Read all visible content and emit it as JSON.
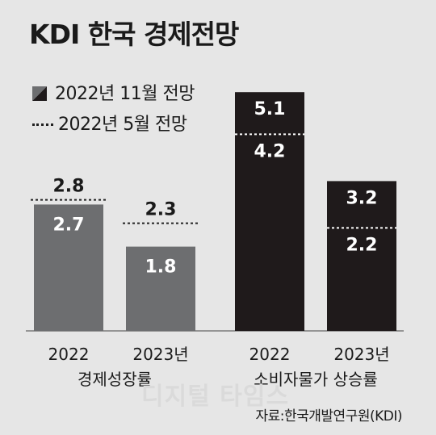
{
  "header": {
    "title": "KDI 한국 경제전망"
  },
  "legend": {
    "nov_label": "2022년 11월 전망",
    "may_label": "2022년  5월 전망"
  },
  "source": "자료:한국개발연구원(KDI)",
  "watermark": "디지털 타임스",
  "colors": {
    "growth_bar": "#6d6e70",
    "consumer_bar": "#1f1a1b",
    "background": "#e6e6e6"
  },
  "chart_data": {
    "type": "bar",
    "title": "KDI 한국 경제전망",
    "ylim": [
      0,
      5.5
    ],
    "grid": false,
    "groups": [
      {
        "label": "경제성장률",
        "bar_color": "#6d6e70",
        "categories": [
          "2022",
          "2023년"
        ],
        "series": [
          {
            "name": "2022년 11월 전망",
            "values": [
              2.7,
              1.8
            ]
          },
          {
            "name": "2022년 5월 전망",
            "values": [
              2.8,
              2.3
            ]
          }
        ]
      },
      {
        "label": "소비자물가 상승률",
        "bar_color": "#1f1a1b",
        "categories": [
          "2022",
          "2023년"
        ],
        "series": [
          {
            "name": "2022년 11월 전망",
            "values": [
              5.1,
              3.2
            ]
          },
          {
            "name": "2022년 5월 전망",
            "values": [
              4.2,
              2.2
            ]
          }
        ]
      }
    ]
  }
}
